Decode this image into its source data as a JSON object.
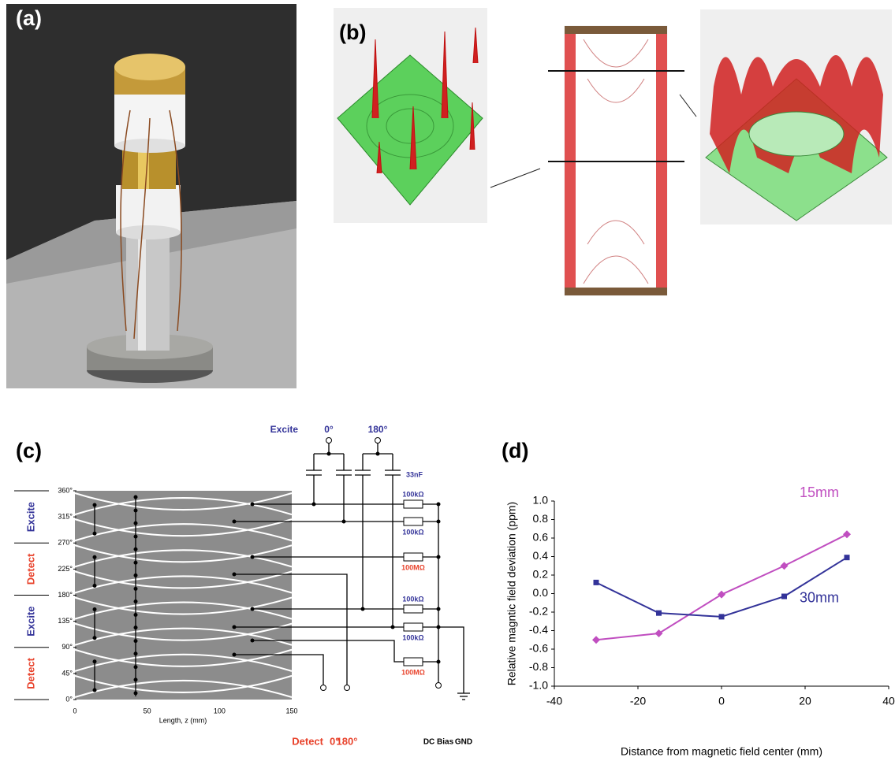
{
  "panel_labels": [
    "(a)",
    "(b)",
    "(c)",
    "(d)"
  ],
  "circuit": {
    "top_label": "Excite",
    "top_angles": [
      "0°",
      "180°"
    ],
    "capacitor": "33nF",
    "resistors": [
      "100kΩ",
      "100kΩ",
      "100MΩ",
      "100kΩ",
      "100kΩ",
      "100MΩ"
    ],
    "angles": [
      "360°",
      "315°",
      "270°",
      "225°",
      "180°",
      "135°",
      "90°",
      "45°",
      "0°"
    ],
    "sides": [
      "Excite",
      "Detect",
      "Excite",
      "Detect"
    ],
    "xticks": [
      "0",
      "50",
      "100",
      "150"
    ],
    "xlabel": "Length, z (mm)",
    "bottom_label": "Detect",
    "bottom_angles": [
      "0°",
      "180°"
    ],
    "dc_bias": "DC Bias",
    "gnd": "GND"
  },
  "chart_data": {
    "type": "line",
    "x_label": "Distance from magnetic field center (mm)",
    "y_label": "Relative magntic field deviation (ppm)",
    "x": [
      -30,
      -15,
      0,
      15,
      30
    ],
    "series": [
      {
        "name": "15mm",
        "color": "#c04ec0",
        "marker": "diamond",
        "values": [
          -0.5,
          -0.43,
          -0.01,
          0.3,
          0.64
        ]
      },
      {
        "name": "30mm",
        "color": "#333399",
        "marker": "square",
        "values": [
          0.12,
          -0.21,
          -0.25,
          -0.03,
          0.39
        ]
      }
    ],
    "xlim": [
      -40,
      40
    ],
    "xticks": [
      -40,
      -20,
      0,
      20,
      40
    ],
    "ylim": [
      -1,
      1
    ],
    "yticks": [
      {
        "value": 1,
        "label": "1.0"
      },
      0.8,
      0.6,
      0.4,
      0.2,
      {
        "value": 0,
        "label": "0.0"
      },
      -0.2,
      -0.4,
      -0.6,
      -0.8,
      {
        "value": -1,
        "label": "-1.0"
      }
    ],
    "grid": false
  }
}
